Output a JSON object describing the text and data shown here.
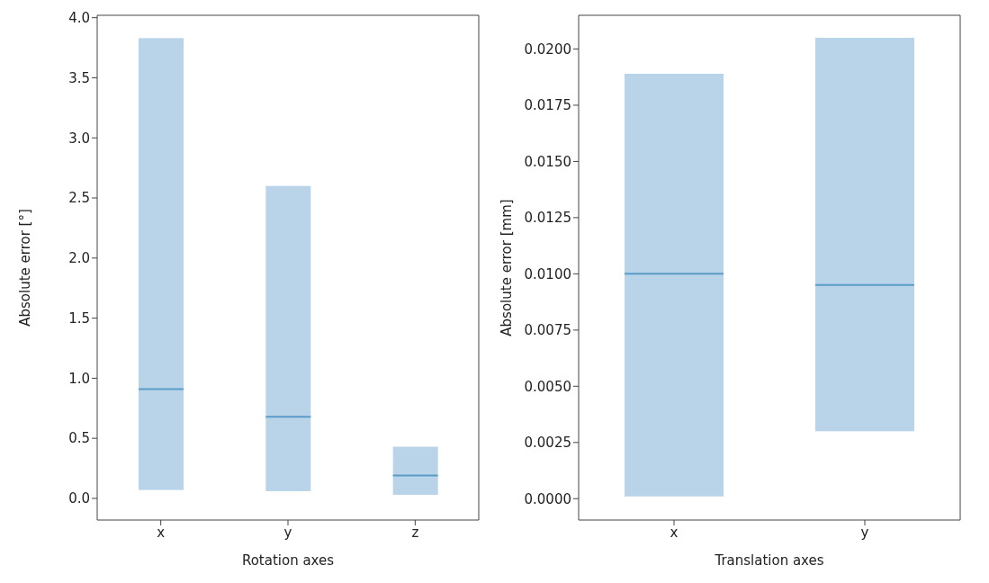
{
  "chart_data": [
    {
      "type": "bar",
      "stacked": true,
      "categories": [
        "x",
        "y",
        "z"
      ],
      "xlabel": "Rotation axes",
      "ylabel": "Absolute error [°]",
      "series": [
        {
          "color": "#b9d4e8",
          "base": [
            0.07,
            0.06,
            0.03
          ],
          "values": [
            0.84,
            0.62,
            0.16
          ]
        },
        {
          "color": "#b9d4e8",
          "values": [
            2.92,
            1.92,
            0.24
          ]
        }
      ],
      "ylim": [
        -0.18,
        4.02
      ],
      "yticks": [
        {
          "value": 0,
          "label": "0.0"
        },
        {
          "value": 0.5,
          "label": "0.5"
        },
        {
          "value": 1,
          "label": "1.0"
        },
        {
          "value": 1.5,
          "label": "1.5"
        },
        {
          "value": 2,
          "label": "2.0"
        },
        {
          "value": 2.5,
          "label": "2.5"
        },
        {
          "value": 3,
          "label": "3.0"
        },
        {
          "value": 3.5,
          "label": "3.5"
        },
        {
          "value": 4,
          "label": "4.0"
        }
      ]
    },
    {
      "type": "bar",
      "stacked": true,
      "categories": [
        "x",
        "y"
      ],
      "xlabel": "Translation axes",
      "ylabel": "Absolute error [mm]",
      "series": [
        {
          "color": "#b9d4e8",
          "base": [
            0.0001,
            0.003
          ],
          "values": [
            0.0099,
            0.0065
          ]
        },
        {
          "color": "#b9d4e8",
          "values": [
            0.0089,
            0.011
          ]
        }
      ],
      "ylim": [
        -0.00095,
        0.0215
      ],
      "yticks": [
        {
          "value": 0,
          "label": "0.0000"
        },
        {
          "value": 0.0025,
          "label": "0.0025"
        },
        {
          "value": 0.005,
          "label": "0.0050"
        },
        {
          "value": 0.0075,
          "label": "0.0075"
        },
        {
          "value": 0.01,
          "label": "0.0100"
        },
        {
          "value": 0.0125,
          "label": "0.0125"
        },
        {
          "value": 0.015,
          "label": "0.0150"
        },
        {
          "value": 0.0175,
          "label": "0.0175"
        },
        {
          "value": 0.02,
          "label": "0.0200"
        }
      ]
    }
  ]
}
